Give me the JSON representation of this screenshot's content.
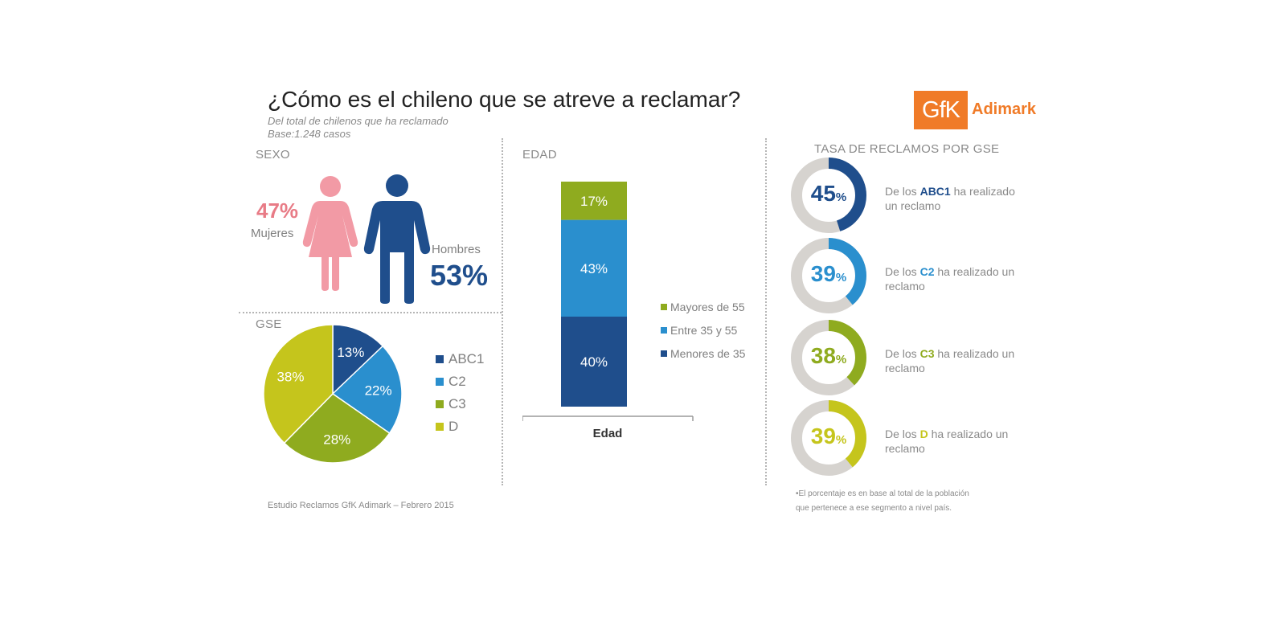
{
  "header": {
    "title": "¿Cómo es el chileno que se atreve a reclamar?",
    "subtitle1": "Del total de chilenos que ha reclamado",
    "subtitle2": "Base:1.248 casos"
  },
  "logo": {
    "box_text": "GfK",
    "brand": "Adimark",
    "color": "#f07b28"
  },
  "sexo": {
    "heading": "SEXO",
    "female_pct": "47%",
    "female_label": "Mujeres",
    "male_pct": "53%",
    "male_label": "Hombres",
    "female_color": "#f29aa5",
    "male_color": "#1f4e8c"
  },
  "gse": {
    "heading": "GSE",
    "legend": [
      "ABC1",
      "C2",
      "C3",
      "D"
    ]
  },
  "edad": {
    "heading": "EDAD",
    "category": "Edad",
    "legend": [
      "Mayores de 55",
      "Entre 35 y 55",
      "Menores de 35"
    ]
  },
  "tasa": {
    "heading": "TASA DE RECLAMOS POR GSE",
    "items": [
      {
        "value": "45",
        "unit": "%",
        "pre": "De los ",
        "seg": "ABC1",
        "post": " ha realizado un reclamo",
        "color": "#1f4e8c"
      },
      {
        "value": "39",
        "unit": "%",
        "pre": "De los ",
        "seg": "C2",
        "post": " ha realizado un reclamo",
        "color": "#2a8fce"
      },
      {
        "value": "38",
        "unit": "%",
        "pre": "De los ",
        "seg": "C3",
        "post": " ha realizado un reclamo",
        "color": "#8fab1f"
      },
      {
        "value": "39",
        "unit": "%",
        "pre": "De los ",
        "seg": "D",
        "post": " ha realizado un reclamo",
        "color": "#c5c51c"
      }
    ],
    "note1": "•El porcentaje es en base al total de la  población",
    "note2": "que pertenece a ese segmento a nivel país."
  },
  "footer": "Estudio Reclamos GfK Adimark – Febrero 2015",
  "chart_data": [
    {
      "type": "pie",
      "categories": [
        "ABC1",
        "C2",
        "C3",
        "D"
      ],
      "values": [
        13,
        22,
        28,
        38
      ],
      "labels": [
        "13%",
        "22%",
        "28%",
        "38%"
      ],
      "colors": [
        "#1f4e8c",
        "#2a8fce",
        "#8fab1f",
        "#c5c51c"
      ]
    },
    {
      "type": "bar",
      "stacked": true,
      "categories": [
        "Edad"
      ],
      "series": [
        {
          "name": "Menores de 35",
          "values": [
            40
          ],
          "label": "40%",
          "color": "#1f4e8c"
        },
        {
          "name": "Entre 35 y 55",
          "values": [
            43
          ],
          "label": "43%",
          "color": "#2a8fce"
        },
        {
          "name": "Mayores de 55",
          "values": [
            17
          ],
          "label": "17%",
          "color": "#8fab1f"
        }
      ],
      "ylim": [
        0,
        100
      ]
    },
    {
      "type": "pie",
      "variant": "donut",
      "categories": [
        "ABC1",
        "C2",
        "C3",
        "D"
      ],
      "values": [
        45,
        39,
        38,
        39
      ],
      "colors": [
        "#1f4e8c",
        "#2a8fce",
        "#8fab1f",
        "#c5c51c"
      ],
      "track_color": "#d6d3cf"
    }
  ]
}
